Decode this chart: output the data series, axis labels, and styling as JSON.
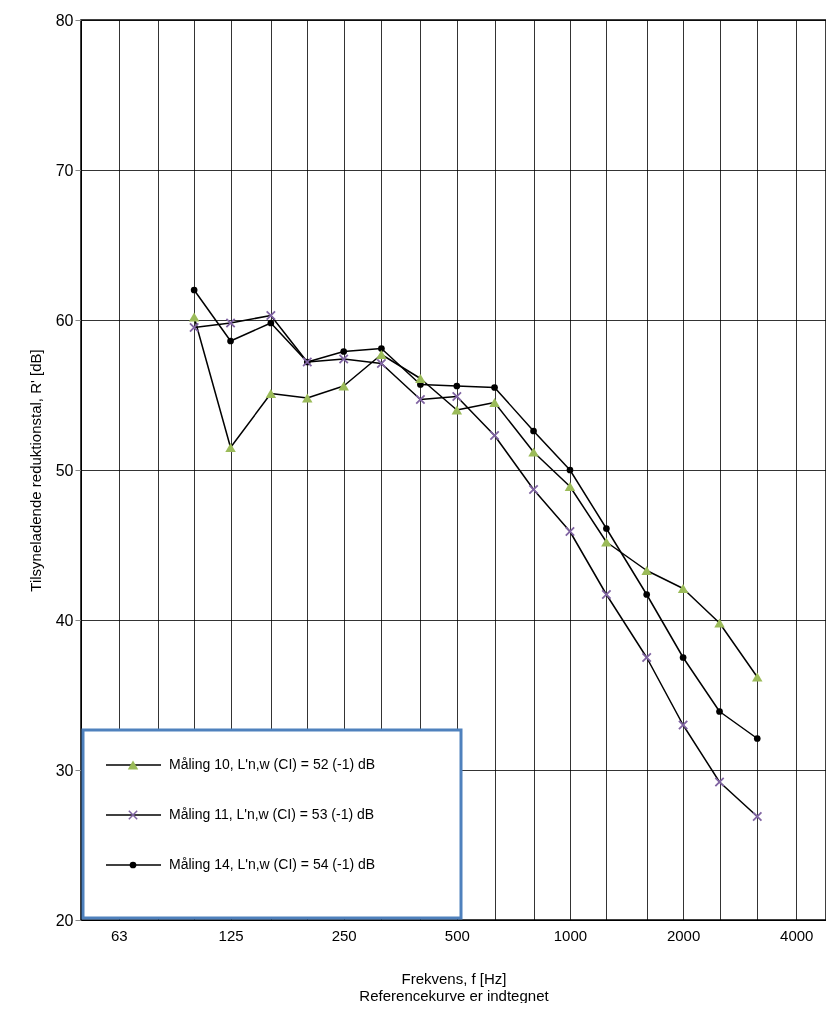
{
  "chart_data": {
    "type": "line",
    "xlabel": "Frekvens, f [Hz]",
    "ylabel": "Tilsyneladende reduktionstal, R' [dB]",
    "annotations": [
      "Referencekurve er indtegnet"
    ],
    "x": [
      100,
      125,
      160,
      200,
      250,
      315,
      400,
      500,
      630,
      800,
      1000,
      1250,
      1600,
      2000,
      2500,
      3150
    ],
    "series": [
      {
        "name": "Måling 10, L'n,w (CI) = 52 (-1) dB",
        "color": "#9bbb59",
        "marker": "triangle",
        "values": [
          60.2,
          51.5,
          55.1,
          54.8,
          55.6,
          57.7,
          56.1,
          54.0,
          54.5,
          51.2,
          48.9,
          45.2,
          43.3,
          42.1,
          39.8,
          36.2
        ]
      },
      {
        "name": "Måling 11, L'n,w (CI) = 53 (-1) dB",
        "color": "#8064a2",
        "marker": "cross",
        "values": [
          59.5,
          59.8,
          60.3,
          57.2,
          57.4,
          57.1,
          54.7,
          54.9,
          52.3,
          48.7,
          45.9,
          41.7,
          37.5,
          33.0,
          29.2,
          26.9
        ]
      },
      {
        "name": "Måling 14, L'n,w (CI) = 54 (-1) dB",
        "color": "#000000",
        "marker": "circle",
        "values": [
          62.0,
          58.6,
          59.8,
          57.2,
          57.9,
          58.1,
          55.7,
          55.6,
          55.5,
          52.6,
          50.0,
          46.1,
          41.7,
          37.5,
          33.9,
          32.1
        ]
      }
    ],
    "log": "x",
    "xlim": [
      50,
      4800
    ],
    "xticks": [
      {
        "value": 50,
        "label": null
      },
      63,
      {
        "value": 80,
        "label": null
      },
      {
        "value": 100,
        "label": null
      },
      125,
      {
        "value": 160,
        "label": null
      },
      {
        "value": 200,
        "label": null
      },
      250,
      {
        "value": 315,
        "label": null
      },
      {
        "value": 400,
        "label": null
      },
      500,
      {
        "value": 630,
        "label": null
      },
      {
        "value": 800,
        "label": null
      },
      1000,
      {
        "value": 1250,
        "label": null
      },
      {
        "value": 1600,
        "label": null
      },
      2000,
      {
        "value": 2500,
        "label": null
      },
      {
        "value": 3150,
        "label": null
      },
      4000
    ],
    "ylim": [
      20,
      80
    ],
    "yticks": [
      20,
      30,
      40,
      50,
      60,
      70,
      80
    ],
    "grid": true,
    "legend": "bottom left",
    "line_style": "solid"
  }
}
